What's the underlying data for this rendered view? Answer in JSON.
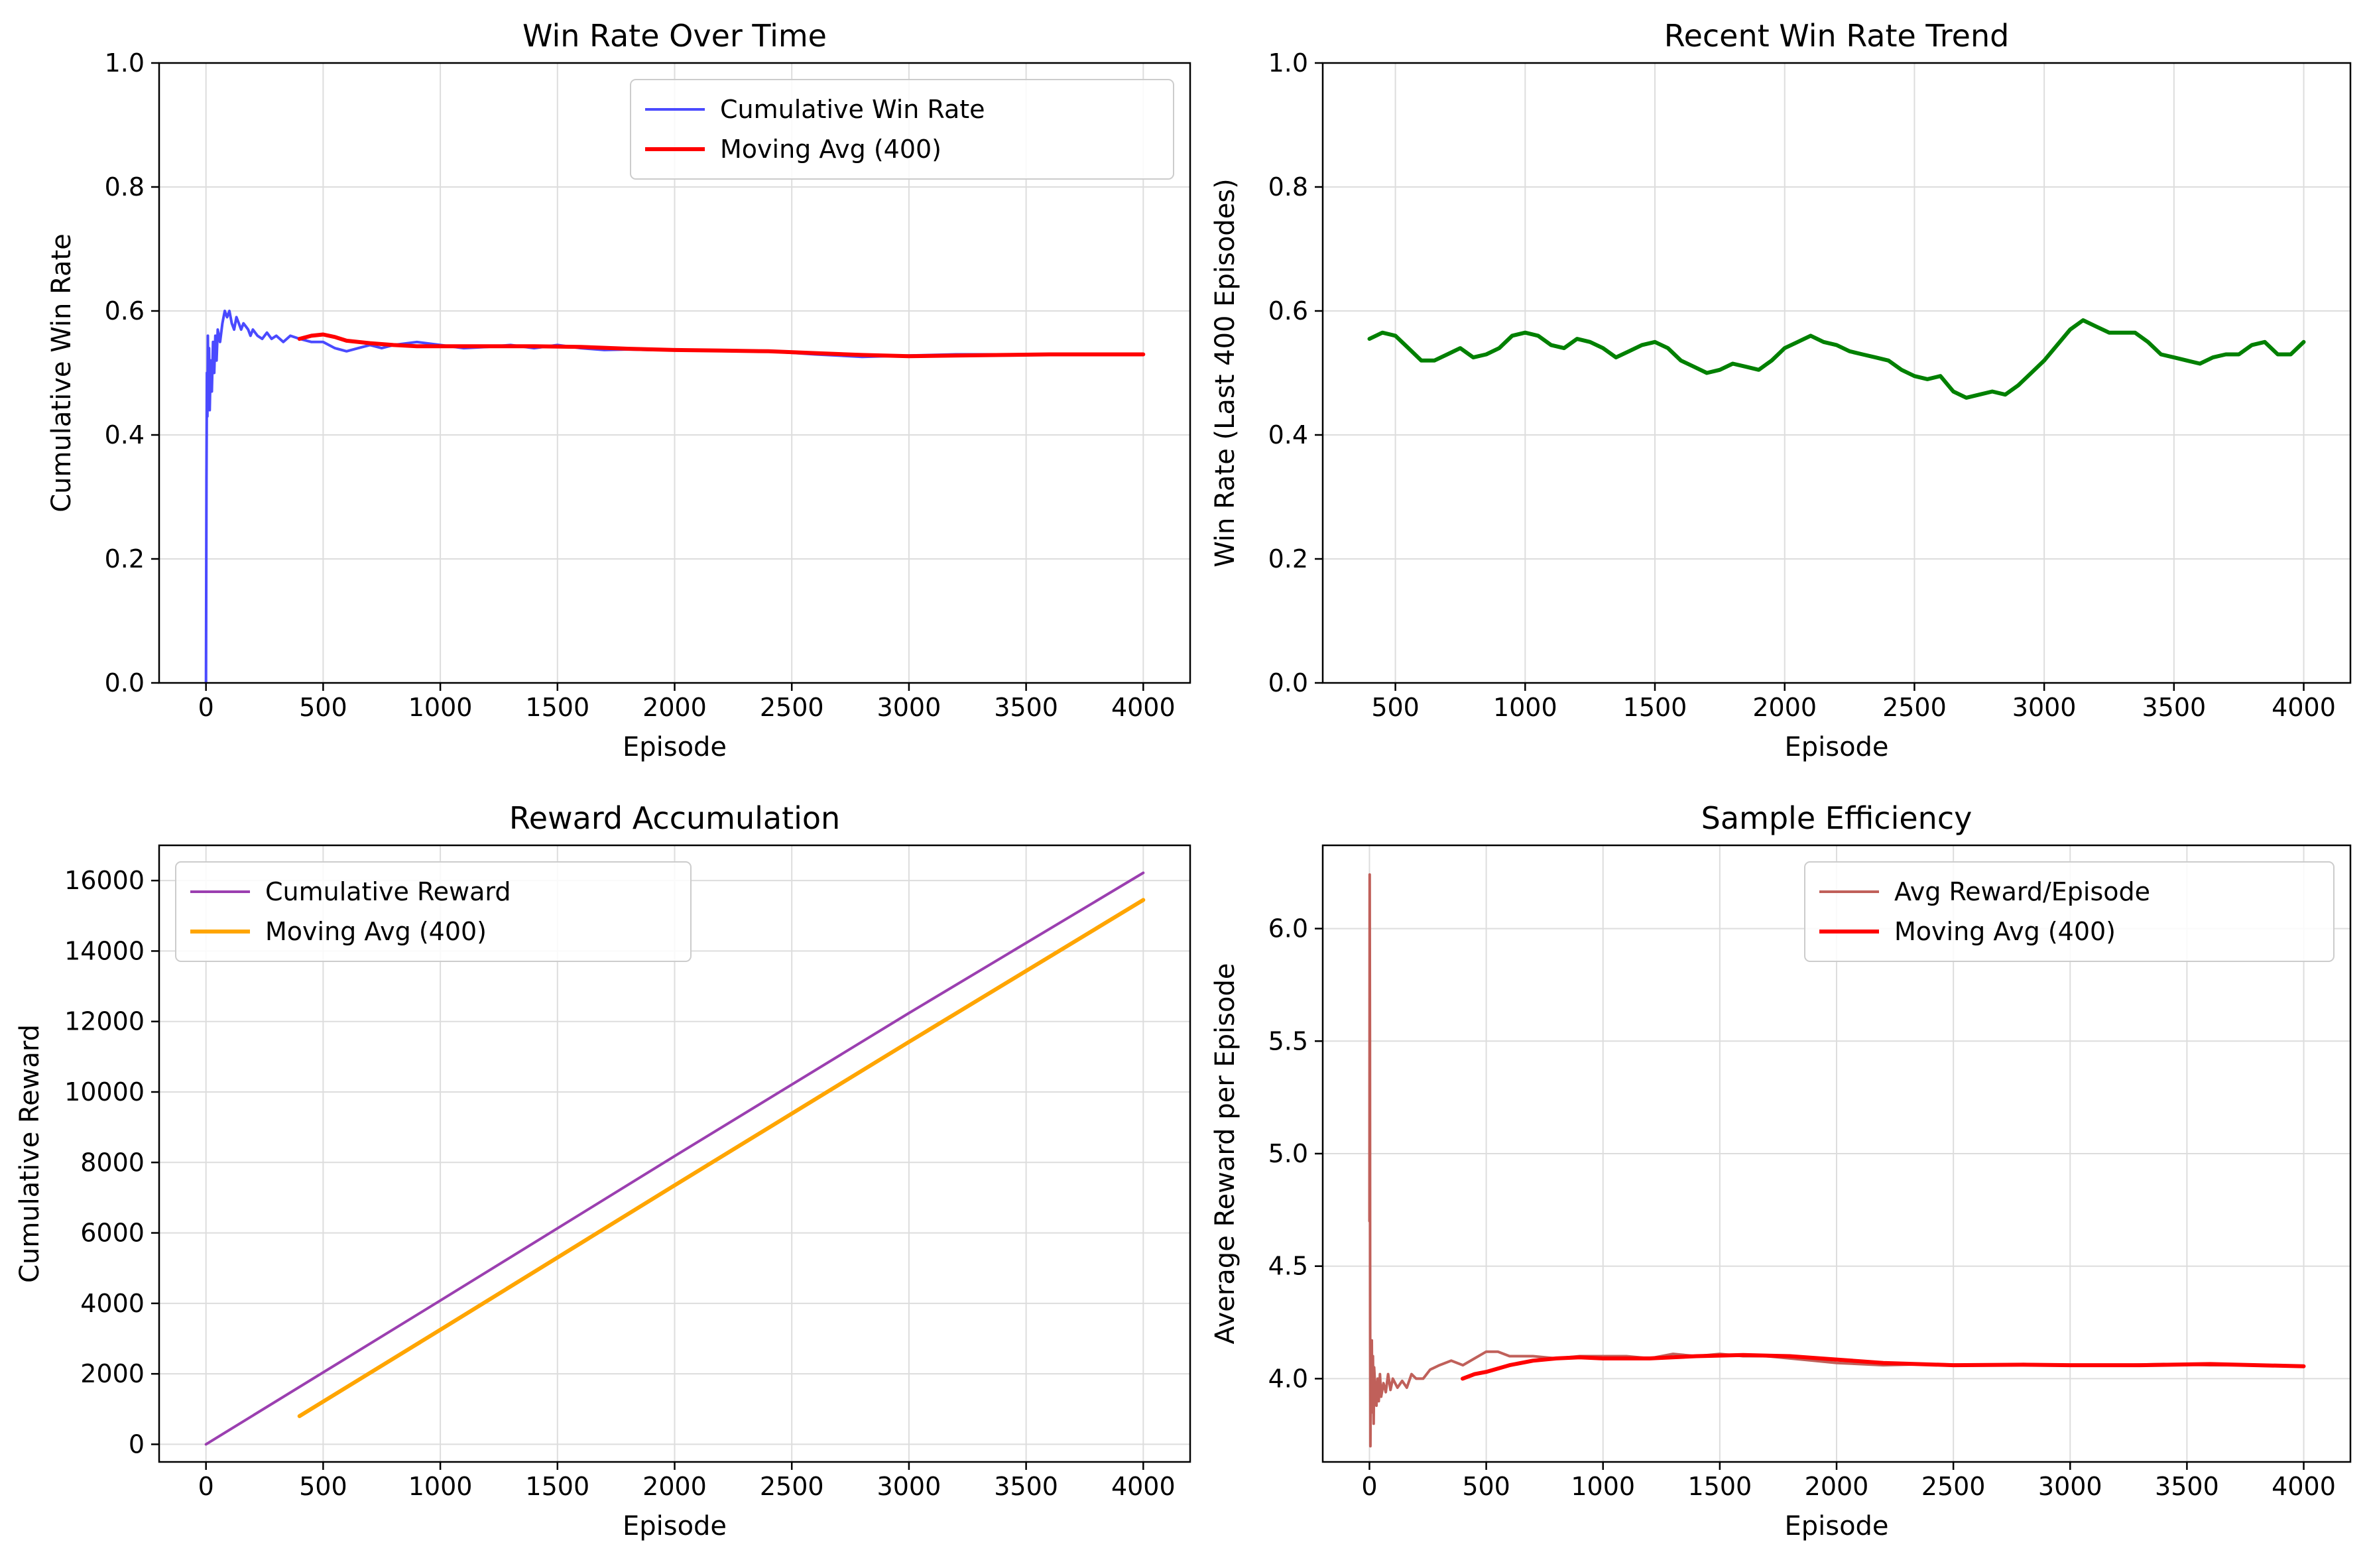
{
  "colors": {
    "cumulative_win_rate": "#4a4aff",
    "moving_avg_red": "#ff0000",
    "recent_trend": "#008000",
    "cumulative_reward": "#9b3fb0",
    "moving_avg_orange": "#ffa500",
    "avg_reward": "#c0605a",
    "grid": "#dddddd"
  },
  "chart_data": [
    {
      "id": "win",
      "type": "line",
      "title": "Win Rate Over Time",
      "xlabel": "Episode",
      "ylabel": "Cumulative Win Rate",
      "xlim": [
        -200,
        4200
      ],
      "ylim": [
        0,
        1.0
      ],
      "xticks": [
        0,
        500,
        1000,
        1500,
        2000,
        2500,
        3000,
        3500,
        4000
      ],
      "yticks": [
        0.0,
        0.2,
        0.4,
        0.6,
        0.8,
        1.0
      ],
      "ytick_labels": [
        "0.0",
        "0.2",
        "0.4",
        "0.6",
        "0.8",
        "1.0"
      ],
      "grid": true,
      "legend": "upper right",
      "series": [
        {
          "name": "Cumulative Win Rate",
          "color": "#4a4aff",
          "width": 4,
          "x": [
            0,
            2,
            4,
            6,
            8,
            10,
            13,
            16,
            20,
            25,
            30,
            35,
            40,
            45,
            50,
            60,
            70,
            80,
            90,
            100,
            110,
            120,
            130,
            140,
            150,
            160,
            170,
            180,
            190,
            200,
            220,
            240,
            260,
            280,
            300,
            330,
            360,
            400,
            450,
            500,
            550,
            600,
            650,
            700,
            750,
            800,
            900,
            1000,
            1100,
            1200,
            1300,
            1400,
            1500,
            1600,
            1700,
            1800,
            1900,
            2000,
            2200,
            2400,
            2600,
            2800,
            3000,
            3200,
            3500,
            3800,
            4000
          ],
          "y": [
            0.0,
            0.33,
            0.5,
            0.43,
            0.56,
            0.47,
            0.54,
            0.44,
            0.52,
            0.47,
            0.55,
            0.5,
            0.56,
            0.52,
            0.57,
            0.55,
            0.58,
            0.6,
            0.59,
            0.6,
            0.58,
            0.57,
            0.59,
            0.58,
            0.57,
            0.58,
            0.575,
            0.57,
            0.56,
            0.57,
            0.56,
            0.555,
            0.565,
            0.555,
            0.56,
            0.55,
            0.56,
            0.555,
            0.55,
            0.55,
            0.54,
            0.535,
            0.54,
            0.545,
            0.54,
            0.545,
            0.55,
            0.545,
            0.54,
            0.542,
            0.545,
            0.54,
            0.545,
            0.54,
            0.537,
            0.538,
            0.537,
            0.537,
            0.536,
            0.535,
            0.53,
            0.526,
            0.528,
            0.53,
            0.53,
            0.53,
            0.53
          ]
        },
        {
          "name": "Moving Avg (400)",
          "color": "#ff0000",
          "width": 6,
          "x": [
            399,
            450,
            500,
            550,
            600,
            700,
            800,
            900,
            1000,
            1200,
            1400,
            1600,
            1800,
            2000,
            2200,
            2400,
            2600,
            2800,
            3000,
            3200,
            3400,
            3600,
            3800,
            4000
          ],
          "y": [
            0.555,
            0.56,
            0.562,
            0.558,
            0.552,
            0.548,
            0.545,
            0.543,
            0.543,
            0.543,
            0.543,
            0.542,
            0.539,
            0.537,
            0.536,
            0.535,
            0.532,
            0.529,
            0.527,
            0.528,
            0.529,
            0.53,
            0.53,
            0.53
          ]
        }
      ]
    },
    {
      "id": "recent",
      "type": "line",
      "title": "Recent Win Rate Trend",
      "xlabel": "Episode",
      "ylabel": "Win Rate (Last 400 Episodes)",
      "xlim": [
        220,
        4180
      ],
      "ylim": [
        0,
        1.0
      ],
      "xticks": [
        500,
        1000,
        1500,
        2000,
        2500,
        3000,
        3500,
        4000
      ],
      "yticks": [
        0.0,
        0.2,
        0.4,
        0.6,
        0.8,
        1.0
      ],
      "ytick_labels": [
        "0.0",
        "0.2",
        "0.4",
        "0.6",
        "0.8",
        "1.0"
      ],
      "grid": true,
      "legend": "",
      "series": [
        {
          "name": "",
          "color": "#008000",
          "width": 6,
          "x": [
            400,
            450,
            500,
            550,
            600,
            650,
            700,
            750,
            800,
            850,
            900,
            950,
            1000,
            1050,
            1100,
            1150,
            1200,
            1250,
            1300,
            1350,
            1400,
            1450,
            1500,
            1550,
            1600,
            1650,
            1700,
            1750,
            1800,
            1850,
            1900,
            1950,
            2000,
            2050,
            2100,
            2150,
            2200,
            2250,
            2300,
            2350,
            2400,
            2450,
            2500,
            2550,
            2600,
            2650,
            2700,
            2750,
            2800,
            2850,
            2900,
            2950,
            3000,
            3050,
            3100,
            3150,
            3200,
            3250,
            3300,
            3350,
            3400,
            3450,
            3500,
            3550,
            3600,
            3650,
            3700,
            3750,
            3800,
            3850,
            3900,
            3950,
            4000
          ],
          "y": [
            0.555,
            0.565,
            0.56,
            0.54,
            0.52,
            0.52,
            0.53,
            0.54,
            0.525,
            0.53,
            0.54,
            0.56,
            0.565,
            0.56,
            0.545,
            0.54,
            0.555,
            0.55,
            0.54,
            0.525,
            0.535,
            0.545,
            0.55,
            0.54,
            0.52,
            0.51,
            0.5,
            0.505,
            0.515,
            0.51,
            0.505,
            0.52,
            0.54,
            0.55,
            0.56,
            0.55,
            0.545,
            0.535,
            0.53,
            0.525,
            0.52,
            0.505,
            0.495,
            0.49,
            0.495,
            0.47,
            0.46,
            0.465,
            0.47,
            0.465,
            0.48,
            0.5,
            0.52,
            0.545,
            0.57,
            0.585,
            0.575,
            0.565,
            0.565,
            0.565,
            0.55,
            0.53,
            0.525,
            0.52,
            0.515,
            0.525,
            0.53,
            0.53,
            0.545,
            0.55,
            0.53,
            0.53,
            0.55
          ]
        }
      ]
    },
    {
      "id": "reward",
      "type": "line",
      "title": "Reward Accumulation",
      "xlabel": "Episode",
      "ylabel": "Cumulative Reward",
      "xlim": [
        -200,
        4200
      ],
      "ylim": [
        -500,
        17000
      ],
      "xticks": [
        0,
        500,
        1000,
        1500,
        2000,
        2500,
        3000,
        3500,
        4000
      ],
      "yticks": [
        0,
        2000,
        4000,
        6000,
        8000,
        10000,
        12000,
        14000,
        16000
      ],
      "ytick_labels": [
        "0",
        "2000",
        "4000",
        "6000",
        "8000",
        "10000",
        "12000",
        "14000",
        "16000"
      ],
      "grid": true,
      "legend": "upper left",
      "series": [
        {
          "name": "Cumulative Reward",
          "color": "#9b3fb0",
          "width": 4,
          "x": [
            0,
            1000,
            2000,
            3000,
            4000
          ],
          "y": [
            0,
            4080,
            8180,
            12240,
            16220
          ]
        },
        {
          "name": "Moving Avg (400)",
          "color": "#ffa500",
          "width": 6,
          "x": [
            399,
            1000,
            2000,
            3000,
            4000
          ],
          "y": [
            800,
            3250,
            7350,
            11420,
            15450
          ]
        }
      ]
    },
    {
      "id": "eff",
      "type": "line",
      "title": "Sample Efficiency",
      "xlabel": "Episode",
      "ylabel": "Average Reward per Episode",
      "xlim": [
        -200,
        4200
      ],
      "ylim": [
        3.63,
        6.37
      ],
      "xticks": [
        0,
        500,
        1000,
        1500,
        2000,
        2500,
        3000,
        3500,
        4000
      ],
      "yticks": [
        4.0,
        4.5,
        5.0,
        5.5,
        6.0
      ],
      "ytick_labels": [
        "4.0",
        "4.5",
        "5.0",
        "5.5",
        "6.0"
      ],
      "grid": true,
      "legend": "upper right",
      "series": [
        {
          "name": "Avg Reward/Episode",
          "color": "#c0605a",
          "width": 4,
          "x": [
            0,
            1,
            2,
            3,
            4,
            6,
            8,
            10,
            12,
            15,
            18,
            20,
            25,
            30,
            35,
            40,
            45,
            50,
            60,
            70,
            80,
            90,
            100,
            120,
            140,
            160,
            180,
            200,
            230,
            260,
            300,
            350,
            400,
            450,
            500,
            550,
            600,
            700,
            800,
            900,
            1000,
            1100,
            1200,
            1300,
            1400,
            1500,
            1600,
            1700,
            1800,
            1900,
            2000,
            2200,
            2400,
            2600,
            2800,
            3000,
            3200,
            3400,
            3600,
            3800,
            4000
          ],
          "y": [
            4.7,
            6.24,
            5.5,
            4.3,
            3.7,
            4.1,
            3.9,
            4.17,
            3.85,
            4.1,
            3.8,
            4.05,
            3.95,
            3.88,
            4.0,
            3.9,
            4.02,
            3.92,
            3.98,
            3.94,
            4.02,
            3.95,
            4.0,
            3.96,
            3.99,
            3.96,
            4.02,
            4.0,
            4.0,
            4.04,
            4.06,
            4.08,
            4.06,
            4.09,
            4.12,
            4.12,
            4.1,
            4.1,
            4.09,
            4.1,
            4.1,
            4.1,
            4.09,
            4.11,
            4.1,
            4.11,
            4.1,
            4.1,
            4.09,
            4.08,
            4.07,
            4.06,
            4.065,
            4.06,
            4.065,
            4.06,
            4.06,
            4.065,
            4.06,
            4.06,
            4.055
          ]
        },
        {
          "name": "Moving Avg (400)",
          "color": "#ff0000",
          "width": 6,
          "x": [
            399,
            450,
            500,
            600,
            700,
            800,
            900,
            1000,
            1200,
            1400,
            1600,
            1800,
            2000,
            2200,
            2500,
            2800,
            3000,
            3300,
            3600,
            3800,
            4000
          ],
          "y": [
            4.0,
            4.02,
            4.03,
            4.06,
            4.08,
            4.09,
            4.095,
            4.09,
            4.09,
            4.1,
            4.105,
            4.1,
            4.085,
            4.07,
            4.06,
            4.062,
            4.06,
            4.06,
            4.065,
            4.06,
            4.055
          ]
        }
      ]
    }
  ]
}
